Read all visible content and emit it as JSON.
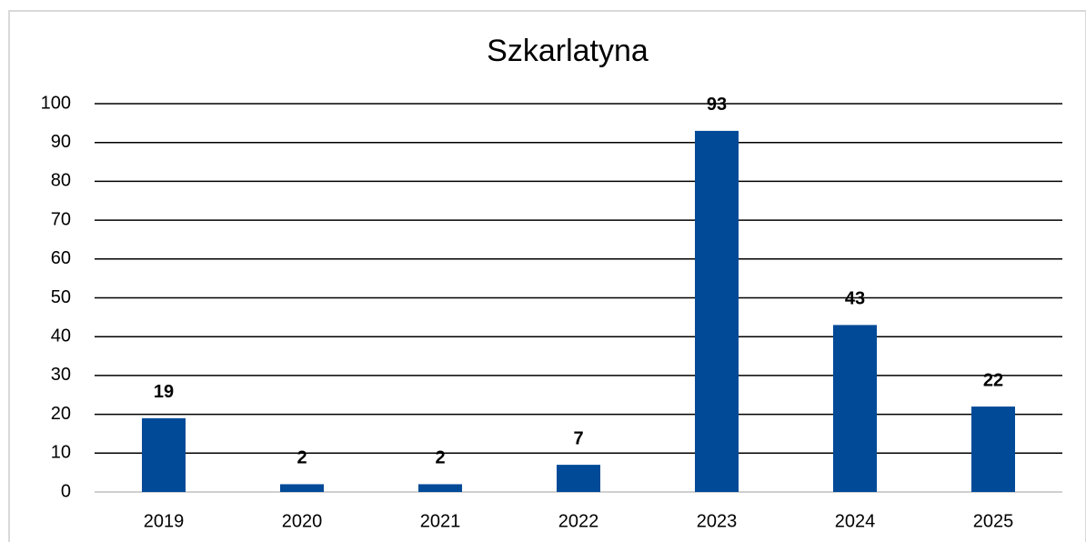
{
  "chart_data": {
    "type": "bar",
    "title": "Szkarlatyna",
    "categories": [
      "2019",
      "2020",
      "2021",
      "2022",
      "2023",
      "2024",
      "2025"
    ],
    "values": [
      19,
      2,
      2,
      7,
      93,
      43,
      22
    ],
    "color": "#004a98",
    "ylim": [
      0,
      100
    ],
    "yticks": [
      0,
      10,
      20,
      30,
      40,
      50,
      60,
      70,
      80,
      90,
      100
    ],
    "grid": true
  }
}
